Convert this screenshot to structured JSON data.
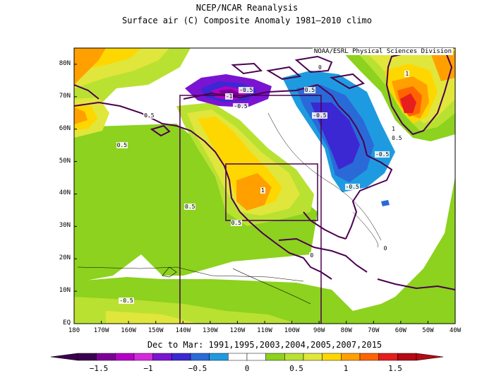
{
  "title": "NCEP/NCAR Reanalysis",
  "subtitle": "Surface air (C) Composite Anomaly 1981–2010 climo",
  "credit": "NOAA/ESRL Physical Sciences Division",
  "period": "Dec to Mar: 1991,1995,2003,2004,2005,2007,2015",
  "lat_labels": [
    "80N",
    "70N",
    "60N",
    "50N",
    "40N",
    "30N",
    "20N",
    "10N",
    "EQ"
  ],
  "lon_labels": [
    "180",
    "170W",
    "160W",
    "150W",
    "140W",
    "130W",
    "120W",
    "110W",
    "100W",
    "90W",
    "80W",
    "70W",
    "60W",
    "50W",
    "40W"
  ],
  "colorbar": {
    "labels": [
      "−1.5",
      "−1",
      "−0.5",
      "0",
      "0.5",
      "1",
      "1.5"
    ],
    "colors": [
      "#3c0050",
      "#7d0096",
      "#b400c8",
      "#d22adc",
      "#7a14d2",
      "#3c28d2",
      "#2a6ad8",
      "#1e9be0",
      "#ffffff",
      "#ffffff",
      "#8cd21e",
      "#b9e132",
      "#e1e63c",
      "#ffd700",
      "#ffa000",
      "#ff6400",
      "#e61e1e",
      "#b40a14"
    ]
  },
  "contour_labels": [
    {
      "text": "-0.5",
      "lon": -118,
      "lat": 72
    },
    {
      "text": "-1",
      "lon": -123,
      "lat": 70
    },
    {
      "text": "-0.5",
      "lon": -120,
      "lat": 67
    },
    {
      "text": "-0.5",
      "lon": -91,
      "lat": 64
    },
    {
      "text": "0.5",
      "lon": -94,
      "lat": 72
    },
    {
      "text": "1",
      "lon": -57,
      "lat": 77
    },
    {
      "text": "1",
      "lon": -62,
      "lat": 60
    },
    {
      "text": "0.5",
      "lon": -62,
      "lat": 57
    },
    {
      "text": "-0.5",
      "lon": -68,
      "lat": 52
    },
    {
      "text": "-0.5",
      "lon": -79,
      "lat": 42
    },
    {
      "text": "0.5",
      "lon": -153,
      "lat": 64
    },
    {
      "text": "0.5",
      "lon": -163,
      "lat": 55
    },
    {
      "text": "1",
      "lon": -110,
      "lat": 41
    },
    {
      "text": "0.5",
      "lon": -138,
      "lat": 36
    },
    {
      "text": "0.5",
      "lon": -121,
      "lat": 31
    },
    {
      "text": "0",
      "lon": -92,
      "lat": 21
    },
    {
      "text": "0",
      "lon": -65,
      "lat": 23
    },
    {
      "text": "-0.5",
      "lon": -162,
      "lat": 7
    },
    {
      "text": "0",
      "lon": -89,
      "lat": 79
    }
  ]
}
